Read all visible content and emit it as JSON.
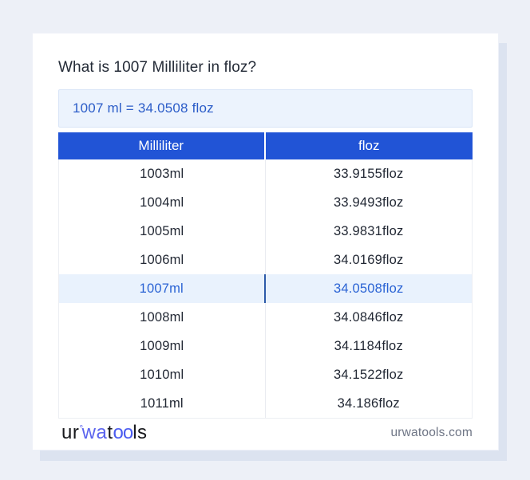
{
  "page": {
    "title": "What is 1007 Milliliter in floz?",
    "answer": "1007 ml = 34.0508 floz"
  },
  "table": {
    "headers": [
      "Milliliter",
      "floz"
    ],
    "rows": [
      {
        "ml": "1003ml",
        "floz": "33.9155floz",
        "highlighted": false
      },
      {
        "ml": "1004ml",
        "floz": "33.9493floz",
        "highlighted": false
      },
      {
        "ml": "1005ml",
        "floz": "33.9831floz",
        "highlighted": false
      },
      {
        "ml": "1006ml",
        "floz": "34.0169floz",
        "highlighted": false
      },
      {
        "ml": "1007ml",
        "floz": "34.0508floz",
        "highlighted": true
      },
      {
        "ml": "1008ml",
        "floz": "34.0846floz",
        "highlighted": false
      },
      {
        "ml": "1009ml",
        "floz": "34.1184floz",
        "highlighted": false
      },
      {
        "ml": "1010ml",
        "floz": "34.1522floz",
        "highlighted": false
      },
      {
        "ml": "1011ml",
        "floz": "34.186floz",
        "highlighted": false
      }
    ]
  },
  "footer": {
    "logo_parts": [
      {
        "text": "ur"
      },
      {
        "text": "°"
      },
      {
        "text": "wa"
      },
      {
        "text": "t"
      },
      {
        "text": "oo"
      },
      {
        "text": "ls"
      }
    ],
    "domain": "urwatools.com"
  },
  "colors": {
    "page_background": "#edf0f7",
    "card_background": "#ffffff",
    "card_shadow": "#dce3f0",
    "header_blue": "#2154d6",
    "answer_box_background": "#ecf3fd",
    "answer_text": "#2b5cc8",
    "highlight_row_background": "#e9f2fd",
    "highlight_text": "#2a63d4",
    "highlight_divider": "#2d5aa9",
    "cell_text": "#222834",
    "logo_blue": "#5b64ee",
    "domain_text": "#6e7585"
  }
}
